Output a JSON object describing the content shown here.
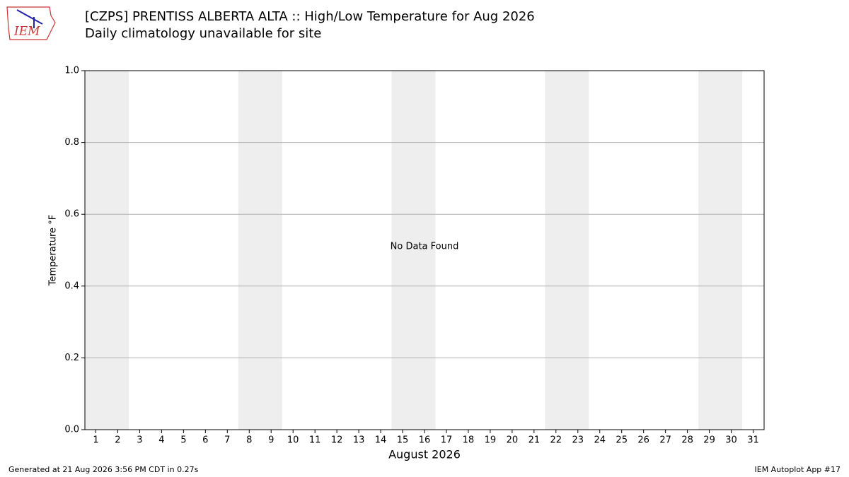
{
  "chart_data": {
    "type": "line",
    "title": "[CZPS] PRENTISS ALBERTA  ALTA :: High/Low Temperature for Aug 2026",
    "subtitle": "Daily climatology unavailable for site",
    "xlabel": "August 2026",
    "ylabel": "Temperature °F",
    "annotation": "No Data Found",
    "xlim": [
      0.5,
      31.5
    ],
    "xticks": [
      1,
      2,
      3,
      4,
      5,
      6,
      7,
      8,
      9,
      10,
      11,
      12,
      13,
      14,
      15,
      16,
      17,
      18,
      19,
      20,
      21,
      22,
      23,
      24,
      25,
      26,
      27,
      28,
      29,
      30,
      31
    ],
    "ylim": [
      0,
      1
    ],
    "yticks": [
      {
        "value": 0,
        "label": "0.0"
      },
      0.2,
      0.4,
      0.6,
      0.8,
      {
        "value": 1,
        "label": "1.0"
      }
    ],
    "grid": "y",
    "shaded_days": [
      [
        1,
        2
      ],
      [
        8,
        9
      ],
      [
        15,
        16
      ],
      [
        22,
        23
      ],
      [
        29,
        30
      ]
    ],
    "shade_color": "#eeeeee"
  },
  "logo_text": "IEM",
  "footer_left": "Generated at 21 Aug 2026 3:56 PM CDT in 0.27s",
  "footer_right": "IEM Autoplot App #17"
}
